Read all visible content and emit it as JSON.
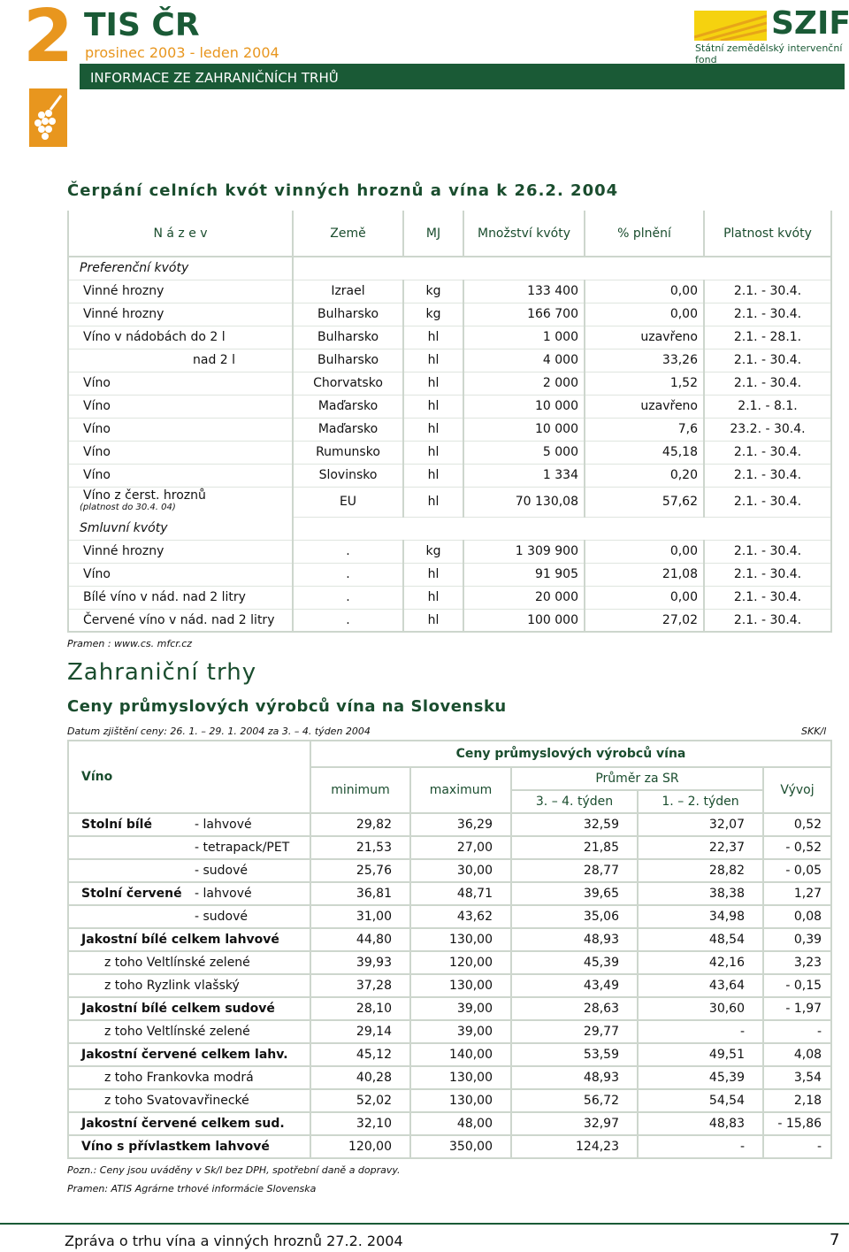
{
  "header": {
    "number": "2",
    "title": "TIS ČR",
    "period": "prosinec 2003 - leden 2004",
    "section": "INFORMACE ZE ZAHRANIČNÍCH TRHŮ",
    "logo": "SZIF",
    "logo_caption": "Státní zemědělský intervenční fond"
  },
  "quota": {
    "title": "Čerpání celních kvót vinných hroznů a vína k 26.2. 2004",
    "columns": [
      "N á z e v",
      "Země",
      "MJ",
      "Množství kvóty",
      "% plnění",
      "Platnost kvóty"
    ],
    "rows": [
      {
        "group": "Preferenční kvóty"
      },
      {
        "cells": [
          "Vinné hrozny",
          "Izrael",
          "kg",
          "133 400",
          "0,00",
          "2.1. - 30.4."
        ]
      },
      {
        "cells": [
          "Vinné hrozny",
          "Bulharsko",
          "kg",
          "166 700",
          "0,00",
          "2.1. - 30.4."
        ]
      },
      {
        "cells": [
          "Víno v nádobách do 2 l",
          "Bulharsko",
          "hl",
          "1 000",
          "uzavřeno",
          "2.1. - 28.1."
        ]
      },
      {
        "cells": [
          "nad 2 l",
          "Bulharsko",
          "hl",
          "4 000",
          "33,26",
          "2.1. - 30.4."
        ],
        "indent": true
      },
      {
        "cells": [
          "Víno",
          "Chorvatsko",
          "hl",
          "2 000",
          "1,52",
          "2.1. - 30.4."
        ]
      },
      {
        "cells": [
          "Víno",
          "Maďarsko",
          "hl",
          "10 000",
          "uzavřeno",
          "2.1. - 8.1."
        ]
      },
      {
        "cells": [
          "Víno",
          "Maďarsko",
          "hl",
          "10 000",
          "7,6",
          "23.2. - 30.4."
        ]
      },
      {
        "cells": [
          "Víno",
          "Rumunsko",
          "hl",
          "5 000",
          "45,18",
          "2.1. - 30.4."
        ]
      },
      {
        "cells": [
          "Víno",
          "Slovinsko",
          "hl",
          "1 334",
          "0,20",
          "2.1. - 30.4."
        ]
      },
      {
        "cells": [
          "Víno z čerst. hroznů",
          "EU",
          "hl",
          "70 130,08",
          "57,62",
          "2.1. - 30.4."
        ],
        "note": "(platnost do 30.4. 04)"
      },
      {
        "group": "Smluvní kvóty"
      },
      {
        "cells": [
          "Vinné hrozny",
          ".",
          "kg",
          "1 309 900",
          "0,00",
          "2.1. - 30.4."
        ]
      },
      {
        "cells": [
          "Víno",
          ".",
          "hl",
          "91 905",
          "21,08",
          "2.1. - 30.4."
        ]
      },
      {
        "cells": [
          "Bílé víno v nád. nad 2 litry",
          ".",
          "hl",
          "20 000",
          "0,00",
          "2.1. - 30.4."
        ]
      },
      {
        "cells": [
          "Červené víno v nád. nad 2 litry",
          ".",
          "hl",
          "100 000",
          "27,02",
          "2.1. - 30.4."
        ]
      }
    ],
    "source": "Pramen : www.cs. mfcr.cz"
  },
  "prices": {
    "heading": "Zahraniční trhy",
    "title": "Ceny průmyslových výrobců vína na Slovensku",
    "date": "Datum zjištění ceny: 26. 1. – 29. 1. 2004 za 3. – 4. týden 2004",
    "unit": "SKK/l",
    "header": {
      "wine": "Víno",
      "group": "Ceny průmyslových výrobců vína",
      "min": "minimum",
      "max": "maximum",
      "avg": "Průměr za SR",
      "avg_a": "3. – 4. týden",
      "avg_b": "1. – 2. týden",
      "change": "Vývoj"
    },
    "rows": [
      {
        "group": "Stolní bílé",
        "item": "- lahvové",
        "values": [
          "29,82",
          "36,29",
          "32,59",
          "32,07",
          "0,52"
        ]
      },
      {
        "item": "- tetrapack/PET",
        "values": [
          "21,53",
          "27,00",
          "21,85",
          "22,37",
          "- 0,52"
        ]
      },
      {
        "item": "- sudové",
        "values": [
          "25,76",
          "30,00",
          "28,77",
          "28,82",
          "- 0,05"
        ]
      },
      {
        "group": "Stolní červené",
        "item": "- lahvové",
        "values": [
          "36,81",
          "48,71",
          "39,65",
          "38,38",
          "1,27"
        ]
      },
      {
        "item": "- sudové",
        "values": [
          "31,00",
          "43,62",
          "35,06",
          "34,98",
          "0,08"
        ]
      },
      {
        "group": "Jakostní bílé celkem lahvové",
        "values": [
          "44,80",
          "130,00",
          "48,93",
          "48,54",
          "0,39"
        ]
      },
      {
        "detail": "z toho Veltlínské zelené",
        "values": [
          "39,93",
          "120,00",
          "45,39",
          "42,16",
          "3,23"
        ]
      },
      {
        "detail": "z toho Ryzlink vlašský",
        "values": [
          "37,28",
          "130,00",
          "43,49",
          "43,64",
          "- 0,15"
        ]
      },
      {
        "group": "Jakostní bílé celkem sudové",
        "values": [
          "28,10",
          "39,00",
          "28,63",
          "30,60",
          "- 1,97"
        ]
      },
      {
        "detail": "z toho Veltlínské zelené",
        "values": [
          "29,14",
          "39,00",
          "29,77",
          "-",
          "-"
        ]
      },
      {
        "group": "Jakostní červené celkem lahv.",
        "values": [
          "45,12",
          "140,00",
          "53,59",
          "49,51",
          "4,08"
        ]
      },
      {
        "detail": "z toho Frankovka modrá",
        "values": [
          "40,28",
          "130,00",
          "48,93",
          "45,39",
          "3,54"
        ]
      },
      {
        "detail": "z toho Svatovavřinecké",
        "values": [
          "52,02",
          "130,00",
          "56,72",
          "54,54",
          "2,18"
        ]
      },
      {
        "group": "Jakostní červené celkem sud.",
        "values": [
          "32,10",
          "48,00",
          "32,97",
          "48,83",
          "- 15,86"
        ]
      },
      {
        "group": "Víno s přívlastkem lahvové",
        "values": [
          "120,00",
          "350,00",
          "124,23",
          "-",
          "-"
        ]
      }
    ]
  },
  "notes": [
    "Pozn.: Ceny jsou uváděny  v Sk/l bez DPH, spotřební daně a dopravy.",
    "Pramen: ATIS Agrárne trhové informácie Slovenska"
  ],
  "footer": {
    "text": "Zpráva o trhu vína a vinných hroznů 27.2. 2004",
    "page": "7"
  }
}
